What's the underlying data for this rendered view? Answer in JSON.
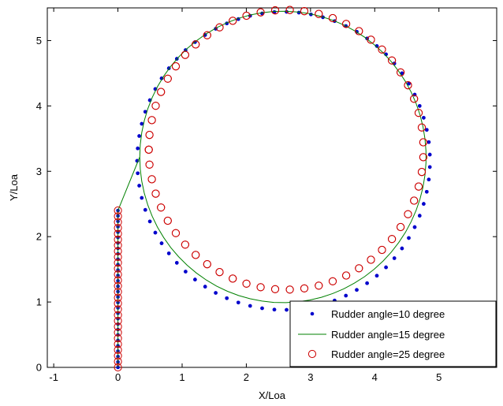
{
  "chart_data": {
    "type": "scatter",
    "title": "",
    "xlabel": "X/Loa",
    "ylabel": "Y/Loa",
    "xlim": [
      -1.1,
      5.9
    ],
    "ylim": [
      0,
      5.5
    ],
    "xticks": [
      -1,
      0,
      1,
      2,
      3,
      4,
      5
    ],
    "yticks": [
      0,
      1,
      2,
      3,
      4,
      5
    ],
    "grid": false,
    "legend_position": "bottom-right",
    "series": [
      {
        "name": "Rudder angle=10 degree",
        "marker": "dot",
        "color": "#0000cc",
        "approach": {
          "x": 0.0,
          "y_start": 0.0,
          "y_end": 2.4,
          "n": 30
        },
        "circle": {
          "cx": 2.58,
          "cy": 3.16,
          "r": 2.28,
          "theta_start_deg": 180,
          "theta_end_deg": -540,
          "n": 150
        }
      },
      {
        "name": "Rudder angle=15 degree",
        "marker": "line",
        "color": "#008000",
        "approach": {
          "x": 0.0,
          "y_start": 0.0,
          "y_end": 2.4,
          "n": 30
        },
        "circle": {
          "cx": 2.57,
          "cy": 3.22,
          "r": 2.23,
          "theta_start_deg": 180,
          "theta_end_deg": -540,
          "n": 150
        }
      },
      {
        "name": "Rudder angle=25 degree",
        "marker": "circle",
        "color": "#cc0000",
        "approach": {
          "x": 0.0,
          "y_start": 0.0,
          "y_end": 2.4,
          "n": 28
        },
        "circle": {
          "cx": 2.62,
          "cy": 3.33,
          "r": 2.14,
          "theta_start_deg": 180,
          "theta_end_deg": -540,
          "n": 118
        }
      }
    ]
  }
}
